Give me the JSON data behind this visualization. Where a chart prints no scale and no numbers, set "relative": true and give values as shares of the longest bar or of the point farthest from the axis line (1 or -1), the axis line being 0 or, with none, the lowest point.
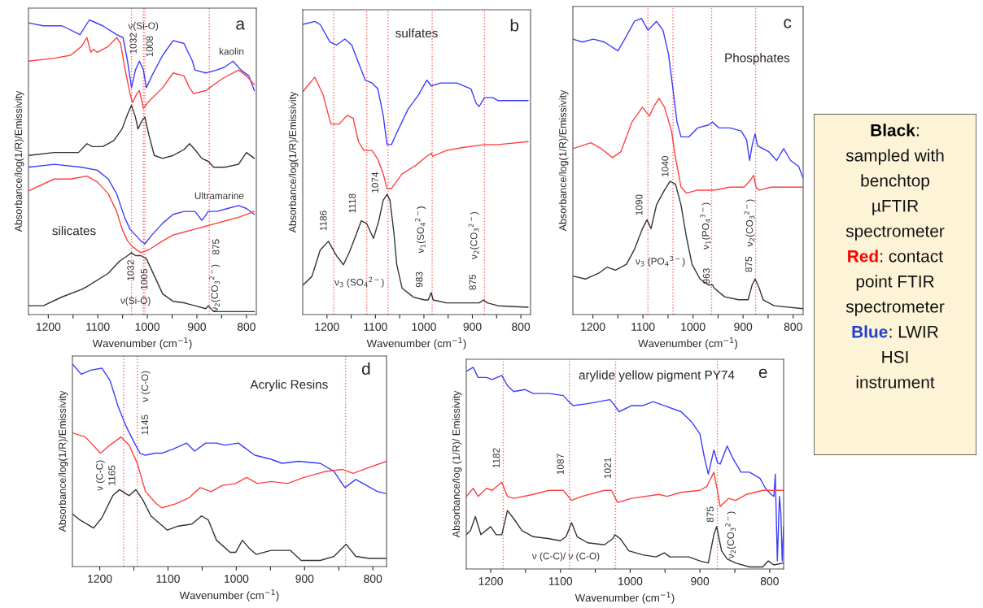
{
  "chart_data": [
    {
      "type": "line",
      "title": "a",
      "subtitle": "silicates",
      "xlabel": "Wavenumber (cm$^{−1}$)",
      "ylabel": "Absorbance/log(1/R)/Emissivity",
      "relative": true,
      "xlim": [
        1240,
        780
      ],
      "xticks": [
        1200,
        {
          "value": 1150,
          "label": null
        },
        1100,
        {
          "value": 1050,
          "label": null
        },
        1000,
        {
          "value": 950,
          "label": null
        },
        900,
        {
          "value": 850,
          "label": null
        },
        800
      ],
      "series": [
        {
          "color": "#3c3cff",
          "x": [
            1240,
            1210,
            1172,
            1136,
            1117,
            1090,
            1062,
            1049,
            1040,
            1032,
            1024,
            1016,
            1008,
            1002,
            991,
            969,
            948,
            926,
            909,
            904,
            882,
            860,
            844,
            827,
            811,
            795,
            784
          ],
          "values": [
            0.99,
            0.98,
            0.98,
            0.95,
            1.0,
            0.98,
            0.95,
            0.94,
            0.86,
            0.77,
            0.83,
            0.86,
            0.83,
            0.77,
            0.81,
            0.88,
            0.93,
            0.92,
            0.86,
            0.83,
            0.82,
            0.83,
            0.84,
            0.86,
            0.83,
            0.81,
            0.76
          ]
        },
        {
          "color": "#ff4040",
          "x": [
            1240,
            1188,
            1155,
            1133,
            1122,
            1114,
            1109,
            1101,
            1079,
            1062,
            1054,
            1046,
            1035,
            1030,
            1021,
            1016,
            1008,
            999,
            969,
            948,
            926,
            915,
            907,
            882,
            849,
            816,
            800,
            784
          ],
          "values": [
            0.86,
            0.87,
            0.88,
            0.91,
            0.94,
            0.89,
            0.9,
            0.89,
            0.91,
            0.94,
            0.92,
            0.84,
            0.75,
            0.72,
            0.75,
            0.76,
            0.7,
            0.72,
            0.77,
            0.82,
            0.81,
            0.77,
            0.75,
            0.76,
            0.8,
            0.83,
            0.81,
            0.78
          ]
        },
        {
          "color": "#333333",
          "x": [
            1240,
            1188,
            1139,
            1122,
            1111,
            1090,
            1068,
            1051,
            1040,
            1032,
            1024,
            1019,
            1010,
            1005,
            997,
            986,
            969,
            948,
            937,
            926,
            915,
            904,
            890,
            877,
            866,
            844,
            816,
            800,
            784
          ],
          "values": [
            0.54,
            0.55,
            0.55,
            0.58,
            0.57,
            0.57,
            0.59,
            0.63,
            0.68,
            0.71,
            0.67,
            0.63,
            0.66,
            0.67,
            0.61,
            0.54,
            0.53,
            0.54,
            0.55,
            0.56,
            0.58,
            0.56,
            0.53,
            0.52,
            0.5,
            0.5,
            0.51,
            0.55,
            0.53
          ]
        },
        {
          "color": "#3c3cff",
          "x": [
            1240,
            1188,
            1133,
            1101,
            1079,
            1062,
            1046,
            1035,
            1024,
            1013,
            1005,
            991,
            969,
            948,
            926,
            904,
            890,
            885,
            877,
            860,
            838,
            816,
            800,
            784
          ],
          "values": [
            0.5,
            0.51,
            0.5,
            0.49,
            0.46,
            0.41,
            0.33,
            0.29,
            0.27,
            0.25,
            0.24,
            0.27,
            0.31,
            0.34,
            0.35,
            0.35,
            0.32,
            0.33,
            0.35,
            0.35,
            0.36,
            0.37,
            0.36,
            0.34
          ]
        },
        {
          "color": "#ff4040",
          "x": [
            1240,
            1188,
            1155,
            1122,
            1101,
            1079,
            1062,
            1051,
            1040,
            1030,
            1013,
            997,
            969,
            948,
            926,
            904,
            882,
            860,
            838,
            816,
            784
          ],
          "values": [
            0.42,
            0.46,
            0.46,
            0.47,
            0.45,
            0.41,
            0.35,
            0.29,
            0.25,
            0.23,
            0.21,
            0.22,
            0.25,
            0.27,
            0.28,
            0.29,
            0.3,
            0.31,
            0.32,
            0.33,
            0.35
          ]
        },
        {
          "color": "#333333",
          "x": [
            1240,
            1210,
            1172,
            1133,
            1122,
            1079,
            1057,
            1040,
            1032,
            1024,
            1013,
            1002,
            991,
            980,
            969,
            948,
            926,
            915,
            904,
            882,
            877,
            866,
            833,
            784
          ],
          "values": [
            0.03,
            0.03,
            0.06,
            0.085,
            0.095,
            0.14,
            0.18,
            0.2,
            0.21,
            0.2,
            0.2,
            0.19,
            0.15,
            0.11,
            0.07,
            0.045,
            0.04,
            0.035,
            0.03,
            0.02,
            0.03,
            0.01,
            0.01,
            0.01
          ]
        }
      ],
      "ref_lines": [
        {
          "axis": "x",
          "value": 1032,
          "color": "#ff6666",
          "line_style": "dotted"
        },
        {
          "axis": "x",
          "value": 1008,
          "color": "#ff6666",
          "line_style": "dotted"
        },
        {
          "axis": "x",
          "value": 1005,
          "color": "#ff6666",
          "line_style": "dotted"
        },
        {
          "axis": "x",
          "value": 875,
          "color": "#ff6666",
          "line_style": "dotted"
        }
      ],
      "annotations": [
        "ν(Si-O)",
        "1032",
        "1008",
        "kaolin",
        "Ultramarine",
        "1032",
        "1005",
        "ν(Si-O)",
        "875",
        "ν$_{2}$(CO$_{3}$$^{2−}$)"
      ]
    },
    {
      "type": "line",
      "title": "b",
      "subtitle": "sulfates",
      "xlabel": "Wavenumber (cm$^{−1}$)",
      "ylabel": "Absorbance/log(1/R)/Emissivity",
      "relative": true,
      "xlim": [
        1250,
        780
      ],
      "xticks": [
        1200,
        {
          "value": 1150,
          "label": null
        },
        1100,
        {
          "value": 1050,
          "label": null
        },
        1000,
        {
          "value": 950,
          "label": null
        },
        900,
        {
          "value": 850,
          "label": null
        },
        800
      ],
      "series": [
        {
          "color": "#3c3cff",
          "x": [
            1250,
            1225,
            1214,
            1194,
            1180,
            1163,
            1149,
            1135,
            1121,
            1107,
            1095,
            1084,
            1076,
            1067,
            1056,
            1033,
            1011,
            994,
            985,
            966,
            932,
            903,
            892,
            886,
            875,
            858,
            847,
            785
          ],
          "values": [
            0.99,
            1.0,
            0.99,
            0.93,
            0.92,
            0.94,
            0.92,
            0.86,
            0.8,
            0.79,
            0.77,
            0.68,
            0.58,
            0.58,
            0.62,
            0.7,
            0.75,
            0.8,
            0.78,
            0.79,
            0.79,
            0.77,
            0.72,
            0.71,
            0.74,
            0.74,
            0.73,
            0.73
          ]
        },
        {
          "color": "#ff4040",
          "x": [
            1250,
            1225,
            1208,
            1192,
            1175,
            1158,
            1146,
            1135,
            1124,
            1107,
            1095,
            1084,
            1076,
            1067,
            1045,
            1016,
            994,
            985,
            982,
            954,
            920,
            875,
            847,
            785
          ],
          "values": [
            0.76,
            0.81,
            0.75,
            0.65,
            0.65,
            0.68,
            0.67,
            0.59,
            0.56,
            0.56,
            0.53,
            0.48,
            0.43,
            0.43,
            0.48,
            0.51,
            0.54,
            0.55,
            0.54,
            0.56,
            0.57,
            0.58,
            0.58,
            0.59
          ]
        },
        {
          "color": "#333333",
          "x": [
            1250,
            1231,
            1214,
            1197,
            1180,
            1166,
            1152,
            1129,
            1118,
            1104,
            1093,
            1084,
            1076,
            1070,
            1062,
            1056,
            1045,
            1022,
            999,
            991,
            985,
            981,
            954,
            903,
            886,
            877,
            869,
            847,
            785
          ],
          "values": [
            0.1,
            0.13,
            0.22,
            0.25,
            0.2,
            0.17,
            0.22,
            0.32,
            0.31,
            0.26,
            0.32,
            0.39,
            0.41,
            0.39,
            0.28,
            0.17,
            0.09,
            0.06,
            0.05,
            0.05,
            0.075,
            0.05,
            0.04,
            0.04,
            0.04,
            0.05,
            0.04,
            0.03,
            0.025
          ]
        }
      ],
      "ref_lines": [
        {
          "axis": "x",
          "value": 1186,
          "color": "#ff6666",
          "line_style": "dotted"
        },
        {
          "axis": "x",
          "value": 1118,
          "color": "#ff6666",
          "line_style": "dotted"
        },
        {
          "axis": "x",
          "value": 1074,
          "color": "#ff6666",
          "line_style": "dotted"
        },
        {
          "axis": "x",
          "value": 983,
          "color": "#ff6666",
          "line_style": "dotted"
        },
        {
          "axis": "x",
          "value": 875,
          "color": "#ff6666",
          "line_style": "dotted"
        }
      ],
      "annotations": [
        "1186",
        "1118",
        "1074",
        "ν$_{3}$ (SO$_{4}$$^{2−}$)",
        "983",
        "ν$_{1}$(SO$_{4}$$^{2−}$)",
        "875",
        "ν$_{2}$(CO$_{3}$$^{2−}$)"
      ]
    },
    {
      "type": "line",
      "title": "c",
      "subtitle": "Phosphates",
      "xlabel": "Wavenumber (cm$^{−1}$)",
      "ylabel": "Absorbance/log(1/R)/Emissivity",
      "relative": true,
      "xlim": [
        1240,
        780
      ],
      "xticks": [
        1200,
        {
          "value": 1150,
          "label": null
        },
        1100,
        {
          "value": 1050,
          "label": null
        },
        1000,
        {
          "value": 950,
          "label": null
        },
        900,
        {
          "value": 850,
          "label": null
        },
        800
      ],
      "series": [
        {
          "color": "#3c3cff",
          "x": [
            1240,
            1221,
            1199,
            1177,
            1150,
            1133,
            1117,
            1103,
            1090,
            1073,
            1060,
            1049,
            1040,
            1032,
            1024,
            1008,
            991,
            969,
            961,
            948,
            926,
            904,
            893,
            887,
            882,
            876,
            871,
            849,
            833,
            819,
            805,
            789,
            780
          ],
          "values": [
            0.93,
            0.92,
            0.93,
            0.92,
            0.89,
            0.94,
            0.99,
            1.0,
            0.96,
            0.99,
            0.96,
            0.88,
            0.76,
            0.65,
            0.6,
            0.6,
            0.63,
            0.64,
            0.65,
            0.63,
            0.63,
            0.62,
            0.59,
            0.52,
            0.57,
            0.61,
            0.57,
            0.55,
            0.52,
            0.56,
            0.52,
            0.5,
            0.46
          ]
        },
        {
          "color": "#ff4040",
          "x": [
            1240,
            1204,
            1183,
            1161,
            1144,
            1122,
            1101,
            1087,
            1079,
            1068,
            1057,
            1043,
            1035,
            1024,
            1013,
            991,
            958,
            926,
            898,
            887,
            879,
            874,
            868,
            844,
            780
          ],
          "values": [
            0.56,
            0.58,
            0.56,
            0.53,
            0.55,
            0.65,
            0.7,
            0.67,
            0.7,
            0.73,
            0.7,
            0.62,
            0.53,
            0.43,
            0.41,
            0.42,
            0.42,
            0.43,
            0.43,
            0.45,
            0.47,
            0.43,
            0.42,
            0.43,
            0.43
          ]
        },
        {
          "color": "#333333",
          "x": [
            1240,
            1215,
            1188,
            1172,
            1155,
            1133,
            1117,
            1101,
            1092,
            1084,
            1073,
            1057,
            1046,
            1035,
            1024,
            1013,
            1002,
            986,
            969,
            961,
            958,
            937,
            909,
            890,
            882,
            876,
            868,
            860,
            838,
            780
          ],
          "values": [
            0.13,
            0.12,
            0.14,
            0.16,
            0.15,
            0.17,
            0.22,
            0.29,
            0.32,
            0.29,
            0.37,
            0.42,
            0.45,
            0.44,
            0.37,
            0.26,
            0.17,
            0.12,
            0.1,
            0.1,
            0.09,
            0.06,
            0.05,
            0.05,
            0.1,
            0.12,
            0.09,
            0.05,
            0.03,
            0.02
          ]
        }
      ],
      "ref_lines": [
        {
          "axis": "x",
          "value": 1090,
          "color": "#ff6666",
          "line_style": "dotted"
        },
        {
          "axis": "x",
          "value": 1040,
          "color": "#ff6666",
          "line_style": "dotted"
        },
        {
          "axis": "x",
          "value": 963,
          "color": "#ff6666",
          "line_style": "dotted"
        },
        {
          "axis": "x",
          "value": 875,
          "color": "#ff6666",
          "line_style": "dotted"
        }
      ],
      "annotations": [
        "1090",
        "1040",
        "ν$_{3}$ (PO$_{4}$$^{3−}$)",
        "963",
        "ν$_{1}$(PO$_{4}$$^{3−}$)",
        "875",
        "ν$_{2}$(CO$_{3}$$^{2−}$)"
      ]
    },
    {
      "type": "line",
      "title": "d",
      "subtitle": "Acrylic Resins",
      "xlabel": "Wavenumber (cm$^{−1}$)",
      "ylabel": "Absorbance/log(1/R)/Emissivity",
      "relative": true,
      "xlim": [
        1240,
        780
      ],
      "xticks": [
        1200,
        {
          "value": 1150,
          "label": null
        },
        1100,
        {
          "value": 1050,
          "label": null
        },
        1000,
        {
          "value": 950,
          "label": null
        },
        900,
        {
          "value": 850,
          "label": null
        },
        800
      ],
      "series": [
        {
          "color": "#3c3cff",
          "x": [
            1240,
            1227,
            1213,
            1197,
            1185,
            1173,
            1161,
            1149,
            1141,
            1133,
            1119,
            1109,
            1093,
            1073,
            1061,
            1045,
            1029,
            1017,
            997,
            989,
            973,
            949,
            933,
            909,
            877,
            857,
            841,
            825,
            809,
            793,
            780
          ],
          "values": [
            1.0,
            0.95,
            0.97,
            0.98,
            0.92,
            0.79,
            0.69,
            0.61,
            0.56,
            0.55,
            0.56,
            0.56,
            0.58,
            0.61,
            0.57,
            0.61,
            0.61,
            0.6,
            0.61,
            0.59,
            0.55,
            0.53,
            0.51,
            0.52,
            0.51,
            0.47,
            0.39,
            0.43,
            0.4,
            0.37,
            0.36
          ]
        },
        {
          "color": "#ff4040",
          "x": [
            1240,
            1221,
            1199,
            1185,
            1169,
            1157,
            1145,
            1133,
            1117,
            1109,
            1089,
            1069,
            1053,
            1037,
            1021,
            1001,
            985,
            969,
            949,
            925,
            901,
            869,
            845,
            829,
            813,
            780
          ],
          "values": [
            0.66,
            0.64,
            0.56,
            0.6,
            0.64,
            0.6,
            0.51,
            0.37,
            0.31,
            0.29,
            0.31,
            0.34,
            0.39,
            0.37,
            0.4,
            0.41,
            0.44,
            0.41,
            0.42,
            0.41,
            0.44,
            0.47,
            0.48,
            0.46,
            0.48,
            0.52
          ]
        },
        {
          "color": "#333333",
          "x": [
            1240,
            1229,
            1209,
            1197,
            1181,
            1171,
            1157,
            1147,
            1137,
            1125,
            1101,
            1085,
            1065,
            1051,
            1041,
            1029,
            1009,
            1001,
            991,
            981,
            971,
            949,
            921,
            905,
            877,
            857,
            839,
            825,
            805,
            780
          ],
          "values": [
            0.26,
            0.23,
            0.19,
            0.24,
            0.35,
            0.38,
            0.35,
            0.38,
            0.33,
            0.25,
            0.18,
            0.2,
            0.21,
            0.25,
            0.23,
            0.13,
            0.07,
            0.07,
            0.13,
            0.09,
            0.06,
            0.08,
            0.08,
            0.03,
            0.03,
            0.05,
            0.11,
            0.05,
            0.04,
            0.04
          ]
        }
      ],
      "ref_lines": [
        {
          "axis": "x",
          "value": 1165,
          "color": "#ff6666",
          "line_style": "dotted"
        },
        {
          "axis": "x",
          "value": 1145,
          "color": "#ff6666",
          "line_style": "dotted"
        },
        {
          "axis": "x",
          "value": 840,
          "color": "#ff6666",
          "line_style": "dotted"
        }
      ],
      "annotations": [
        "ν (C-C)",
        "1165",
        "1145",
        "ν (C-O)"
      ]
    },
    {
      "type": "line",
      "title": "e",
      "subtitle": "arylide yellow pigment PY74",
      "xlabel": "Wavenumber (cm$^{−1}$)",
      "ylabel": "Absorbance/log (1/R)/ Emissivity",
      "relative": true,
      "xlim": [
        1235,
        780
      ],
      "xticks": [
        1200,
        {
          "value": 1150,
          "label": null
        },
        1100,
        {
          "value": 1050,
          "label": null
        },
        1000,
        {
          "value": 950,
          "label": null
        },
        900,
        {
          "value": 850,
          "label": null
        },
        800
      ],
      "series": [
        {
          "color": "#3c3cff",
          "x": [
            1235,
            1225,
            1218,
            1206,
            1198,
            1184,
            1176,
            1167,
            1151,
            1139,
            1116,
            1096,
            1088,
            1082,
            1061,
            1029,
            1022,
            1016,
            998,
            982,
            967,
            951,
            927,
            912,
            900,
            894,
            888,
            880,
            875,
            871,
            861,
            853,
            841,
            829,
            814,
            806,
            798,
            794,
            792,
            789,
            786,
            784,
            782,
            780
          ],
          "values": [
            0.98,
            1.0,
            0.95,
            0.95,
            0.94,
            0.96,
            0.91,
            0.88,
            0.89,
            0.87,
            0.87,
            0.86,
            0.83,
            0.81,
            0.82,
            0.84,
            0.81,
            0.78,
            0.81,
            0.81,
            0.83,
            0.81,
            0.78,
            0.73,
            0.67,
            0.56,
            0.47,
            0.59,
            0.53,
            0.52,
            0.61,
            0.55,
            0.48,
            0.48,
            0.45,
            0.4,
            0.37,
            0.36,
            0.47,
            0.04,
            0.36,
            0.28,
            0.04,
            0.21
          ]
        },
        {
          "color": "#ff4040",
          "x": [
            1235,
            1225,
            1218,
            1206,
            1198,
            1184,
            1176,
            1167,
            1139,
            1116,
            1096,
            1084,
            1069,
            1037,
            1027,
            1018,
            998,
            959,
            947,
            927,
            900,
            890,
            880,
            875,
            871,
            865,
            859,
            849,
            833,
            810,
            794,
            780
          ],
          "values": [
            0.36,
            0.4,
            0.36,
            0.4,
            0.39,
            0.43,
            0.36,
            0.35,
            0.37,
            0.39,
            0.39,
            0.34,
            0.36,
            0.39,
            0.39,
            0.33,
            0.35,
            0.37,
            0.36,
            0.38,
            0.39,
            0.41,
            0.48,
            0.39,
            0.31,
            0.33,
            0.35,
            0.34,
            0.37,
            0.39,
            0.39,
            0.39
          ]
        },
        {
          "color": "#333333",
          "x": [
            1235,
            1229,
            1222,
            1214,
            1200,
            1192,
            1184,
            1176,
            1167,
            1155,
            1139,
            1116,
            1100,
            1092,
            1084,
            1076,
            1061,
            1037,
            1025,
            1022,
            1014,
            1002,
            982,
            963,
            951,
            943,
            916,
            900,
            888,
            880,
            876,
            869,
            861,
            849,
            829,
            810,
            802,
            794,
            780
          ],
          "values": [
            0.17,
            0.19,
            0.26,
            0.17,
            0.21,
            0.17,
            0.17,
            0.29,
            0.25,
            0.19,
            0.16,
            0.15,
            0.14,
            0.16,
            0.23,
            0.16,
            0.13,
            0.12,
            0.15,
            0.17,
            0.15,
            0.09,
            0.07,
            0.06,
            0.08,
            0.06,
            0.06,
            0.04,
            0.03,
            0.17,
            0.21,
            0.09,
            0.05,
            0.03,
            0.01,
            0.01,
            0.04,
            0.02,
            0.03
          ]
        }
      ],
      "ref_lines": [
        {
          "axis": "x",
          "value": 1182,
          "color": "#ff6666",
          "line_style": "dotted"
        },
        {
          "axis": "x",
          "value": 1087,
          "color": "#ff6666",
          "line_style": "dotted"
        },
        {
          "axis": "x",
          "value": 1021,
          "color": "#ff6666",
          "line_style": "dotted"
        },
        {
          "axis": "x",
          "value": 875,
          "color": "#ff6666",
          "line_style": "dotted"
        }
      ],
      "annotations": [
        "1182",
        "1087",
        "1021",
        "ν (C-C)/ ν (C-O)",
        "875",
        "ν$_{2}$(CO$_{3}$$^{2−}$)"
      ]
    },
    {
      "type": "other",
      "colors": [
        "#000000",
        "#ff0000",
        "#1f3fd0"
      ],
      "annotations": [
        "Black:\nsampled with\nbenchtop\nµFTIR\nspectrometer",
        "Red: contact\npoint FTIR\nspectrometer",
        "Blue: LWIR\nHSI\ninstrument"
      ]
    }
  ]
}
